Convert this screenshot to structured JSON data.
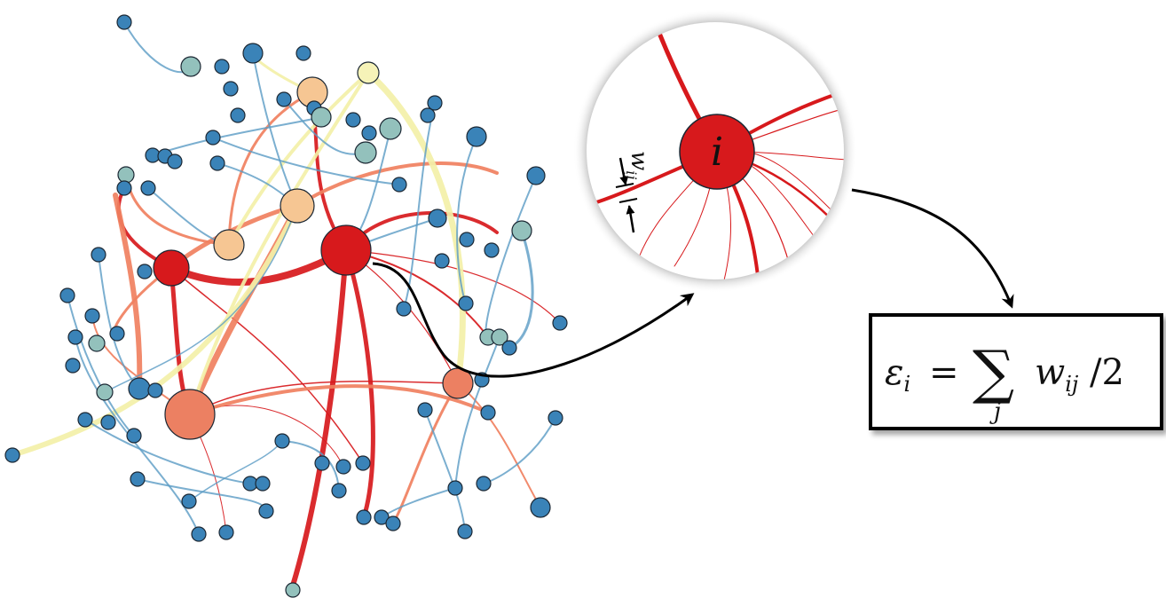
{
  "network": {
    "hub_label": "i",
    "edge_weight_label": "w",
    "edge_weight_subscript": "ij"
  },
  "formula": {
    "lhs": "ε",
    "lhs_subscript": "i",
    "equals": "=",
    "sum_symbol": "∑",
    "sum_index": "j",
    "term": "w",
    "term_subscript": "ij",
    "divisor": "/2"
  },
  "colors": {
    "strong_edge": "#d7191c",
    "medium_edge": "#f08060",
    "pale_edge": "#f3f0a8",
    "weak_edge": "#5a9bc4",
    "node_blue": "#3a83b8",
    "node_teal": "#93c1bc",
    "node_peach": "#f6c693",
    "node_red": "#d7191c",
    "node_salmon": "#ec8062"
  }
}
